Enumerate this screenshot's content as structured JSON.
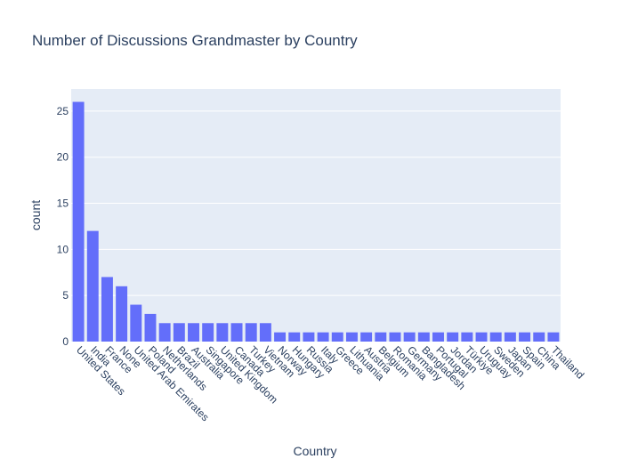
{
  "chart_data": {
    "type": "bar",
    "title": "Number of Discussions Grandmaster by Country",
    "xlabel": "Country",
    "ylabel": "count",
    "ylim": [
      0,
      27.4
    ],
    "yticks": [
      0,
      5,
      10,
      15,
      20,
      25
    ],
    "grid": true,
    "categories": [
      "United States",
      "India",
      "France",
      "None",
      "United Arab Emirates",
      "Poland",
      "Netherlands",
      "Brazil",
      "Australia",
      "Singapore",
      "United Kingdom",
      "Canada",
      "Turkey",
      "Vietnam",
      "Norway",
      "Hungary",
      "Russia",
      "Italy",
      "Greece",
      "Lithuania",
      "Austria",
      "Belgium",
      "Romania",
      "Germany",
      "Bangladesh",
      "Portugal",
      "Jordan",
      "Türkiye",
      "Uruguay",
      "Sweden",
      "Japan",
      "Spain",
      "China",
      "Thailand"
    ],
    "values": [
      26,
      12,
      7,
      6,
      4,
      3,
      2,
      2,
      2,
      2,
      2,
      2,
      2,
      2,
      1,
      1,
      1,
      1,
      1,
      1,
      1,
      1,
      1,
      1,
      1,
      1,
      1,
      1,
      1,
      1,
      1,
      1,
      1,
      1
    ],
    "colors": {
      "bar": "#636efa",
      "plot_bg": "#e5ecf6",
      "grid": "#ffffff",
      "text": "#2a3f5f"
    }
  }
}
